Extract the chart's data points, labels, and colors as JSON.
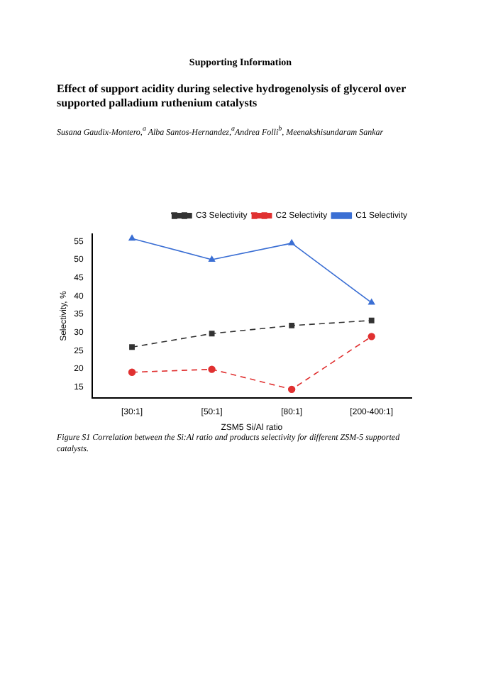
{
  "chart_data": {
    "type": "line",
    "title": "Effect of support acidity during selective hydrogenolysis of glycerol over supported palladium ruthenium catalysts",
    "subtitle": "Susana Gaudix-Montero,$^{a}$ Alba Santos-Hernandez,$^{a}$Andrea Folli$^{b}$, Meenakshisundaram Sankar",
    "annotations": [
      "Supporting Information",
      "Figure S1 Correlation between the Si:Al ratio and products selectivity for different ZSM-5 supported catalysts."
    ],
    "xlabel": "ZSM5 Si/Al ratio",
    "ylabel": "Selectivity, %",
    "categories": [
      "[30:1]",
      "[50:1]",
      "[80:1]",
      "[200-400:1]"
    ],
    "series": [
      {
        "name": "C3 Selectivity",
        "color": "#333333",
        "marker": "square",
        "line_style": "dashed",
        "values": [
          26,
          29.7,
          31.9,
          33.3
        ]
      },
      {
        "name": "C2 Selectivity",
        "color": "#e03030",
        "marker": "circle",
        "line_style": "dashed",
        "values": [
          19.1,
          19.9,
          14.4,
          28.9
        ]
      },
      {
        "name": "C1 Selectivity",
        "color": "#3b6fd4",
        "marker": "triangle",
        "line_style": "solid",
        "values": [
          55.8,
          50,
          54.5,
          38.2
        ]
      }
    ],
    "ylim": [
      12,
      57
    ],
    "yticks": [
      15,
      20,
      25,
      30,
      35,
      40,
      45,
      50,
      55
    ],
    "grid": false,
    "legend": "top right"
  }
}
